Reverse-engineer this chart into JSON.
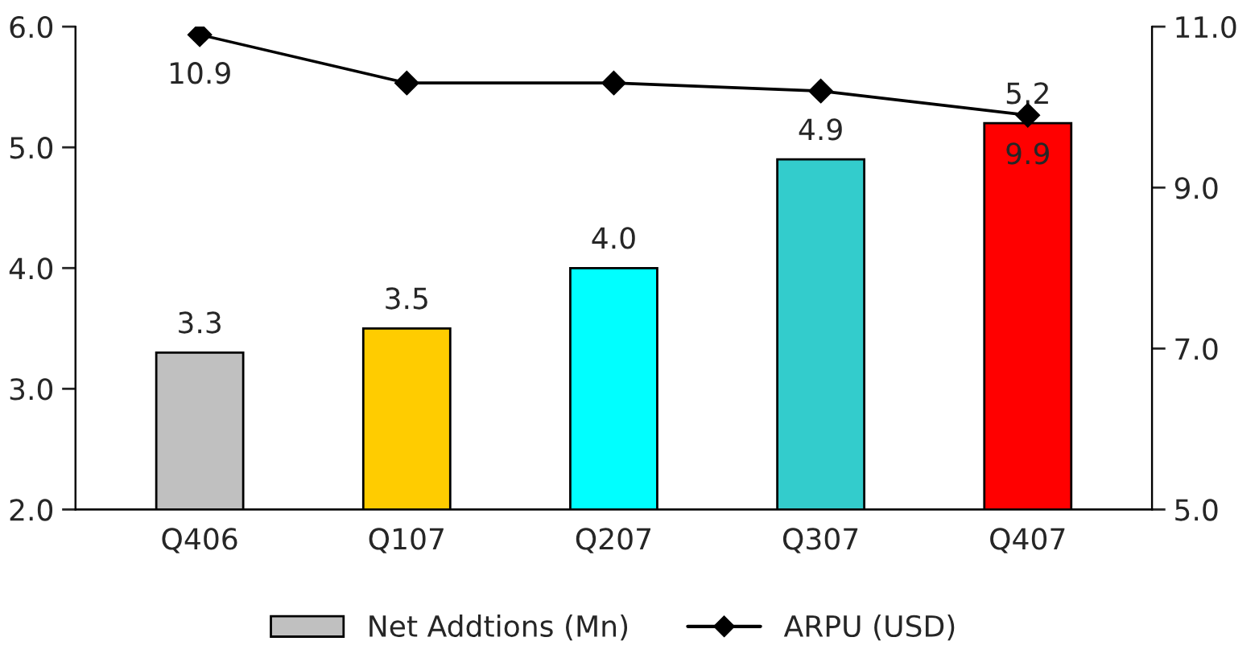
{
  "chart_data": {
    "type": "bar",
    "categories": [
      "Q406",
      "Q107",
      "Q207",
      "Q307",
      "Q407"
    ],
    "series": [
      {
        "name": "Net Addtions (Mn)",
        "colors": [
          "#c0c0c0",
          "#ffcc00",
          "#00ffff",
          "#33cccc",
          "#ff0000"
        ],
        "values": [
          3.3,
          3.5,
          4.0,
          4.9,
          5.2
        ],
        "value_labels": [
          "3.3",
          "3.5",
          "4.0",
          "4.9",
          "5.2"
        ]
      },
      {
        "name": "ARPU (USD)",
        "type": "line",
        "axis": "y2",
        "color": "#000000",
        "marker": "diamond",
        "values": [
          10.9,
          10.3,
          10.3,
          10.2,
          9.9
        ],
        "value_labels": [
          "10.9",
          null,
          null,
          null,
          "9.9"
        ]
      }
    ],
    "ylim": [
      2,
      6
    ],
    "yticks": [
      {
        "value": 2,
        "label": "2.0"
      },
      {
        "value": 3,
        "label": "3.0"
      },
      {
        "value": 4,
        "label": "4.0"
      },
      {
        "value": 5,
        "label": "5.0"
      },
      {
        "value": 6,
        "label": "6.0"
      }
    ],
    "y2lim": [
      5,
      11
    ],
    "y2ticks": [
      {
        "value": 5,
        "label": "5.0"
      },
      {
        "value": 7,
        "label": "7.0"
      },
      {
        "value": 9,
        "label": "9.0"
      },
      {
        "value": 11,
        "label": "11.0"
      }
    ],
    "grid": false,
    "legend": "bottom"
  }
}
